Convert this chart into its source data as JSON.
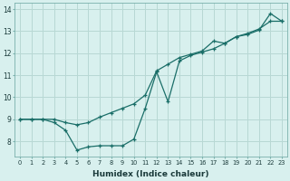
{
  "xlabel": "Humidex (Indice chaleur)",
  "background_color": "#d8f0ee",
  "grid_color": "#b8d8d4",
  "line_color": "#1a6e68",
  "xlim": [
    -0.5,
    23.5
  ],
  "ylim": [
    7.3,
    14.3
  ],
  "yticks": [
    8,
    9,
    10,
    11,
    12,
    13,
    14
  ],
  "xticks": [
    0,
    1,
    2,
    3,
    4,
    5,
    6,
    7,
    8,
    9,
    10,
    11,
    12,
    13,
    14,
    15,
    16,
    17,
    18,
    19,
    20,
    21,
    22,
    23
  ],
  "line1_x": [
    0,
    1,
    2,
    3,
    4,
    5,
    6,
    7,
    8,
    9,
    10,
    11,
    12,
    13,
    14,
    15,
    16,
    17,
    18,
    19,
    20,
    21,
    22,
    23
  ],
  "line1_y": [
    9.0,
    9.0,
    9.0,
    9.0,
    8.85,
    8.75,
    8.85,
    9.1,
    9.3,
    9.5,
    9.7,
    10.1,
    11.2,
    11.5,
    11.8,
    11.95,
    12.1,
    12.55,
    12.45,
    12.75,
    12.9,
    13.1,
    13.45,
    13.45
  ],
  "line2_x": [
    0,
    1,
    2,
    3,
    4,
    5,
    6,
    7,
    8,
    9,
    10,
    11,
    12,
    13,
    14,
    15,
    16,
    17,
    18,
    19,
    20,
    21,
    22,
    23
  ],
  "line2_y": [
    9.0,
    9.0,
    9.0,
    8.85,
    8.5,
    7.6,
    7.75,
    7.8,
    7.8,
    7.8,
    8.1,
    9.5,
    11.15,
    9.8,
    11.65,
    11.9,
    12.05,
    12.2,
    12.45,
    12.75,
    12.85,
    13.05,
    13.8,
    13.45
  ]
}
